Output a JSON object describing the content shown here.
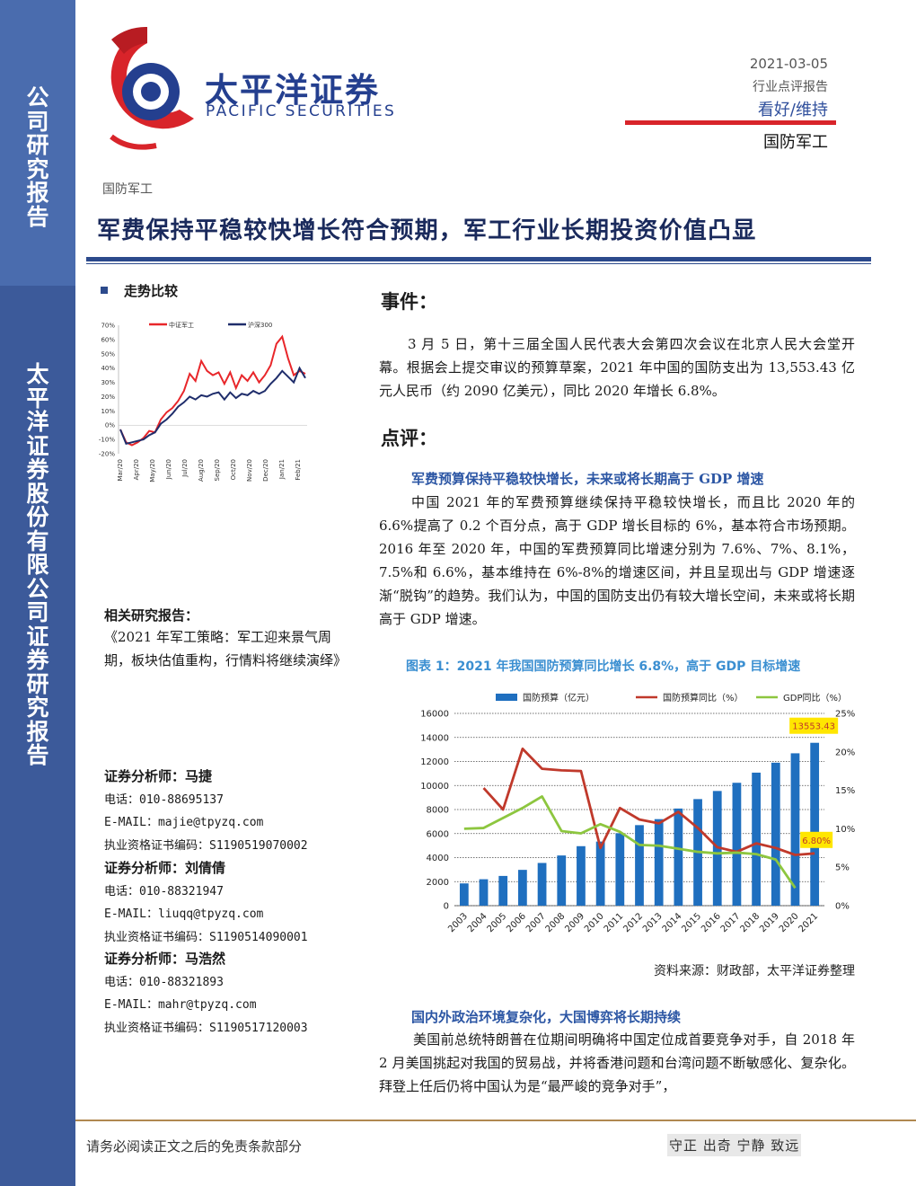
{
  "side_band": {
    "top_text": "公司研究报告",
    "bottom_text": "太平洋证券股份有限公司证券研究报告"
  },
  "header": {
    "brand_cn": "太平洋证券",
    "brand_en": "PACIFIC SECURITIES",
    "date": "2021-03-05",
    "report_type": "行业点评报告",
    "rating": "看好/维持",
    "industry": "国防军工"
  },
  "kicker": "国防军工",
  "title": "军费保持平稳较快增长符合预期，军工行业长期投资价值凸显",
  "trend": {
    "heading": "走势比较",
    "chart_data": {
      "type": "line",
      "series": [
        {
          "name": "中证军工",
          "color": "#e8262a",
          "values": [
            -3,
            -12,
            -14,
            -12,
            -9,
            -4,
            -5,
            4,
            9,
            12,
            17,
            24,
            36,
            31,
            45,
            38,
            35,
            37,
            29,
            37,
            26,
            35,
            31,
            37,
            30,
            35,
            42,
            57,
            62,
            47,
            35,
            38,
            36
          ]
        },
        {
          "name": "沪深300",
          "color": "#1f2d6b",
          "values": [
            -3,
            -13,
            -12,
            -11,
            -10,
            -7,
            -5,
            1,
            4,
            8,
            13,
            16,
            20,
            18,
            21,
            20,
            22,
            23,
            18,
            23,
            19,
            22,
            21,
            24,
            22,
            24,
            29,
            33,
            38,
            34,
            30,
            40,
            33
          ]
        }
      ],
      "y_ticks": [
        "70%",
        "60%",
        "50%",
        "40%",
        "30%",
        "20%",
        "10%",
        "0%",
        "-10%",
        "-20%"
      ],
      "ylim": [
        -20,
        70
      ],
      "x_ticks": [
        "Mar/20",
        "Apr/20",
        "May/20",
        "Jun/20",
        "Jul/20",
        "Aug/20",
        "Sep/20",
        "Oct/20",
        "Nov/20",
        "Dec/20",
        "Jan/21",
        "Feb/21"
      ],
      "legend_placement": "top"
    }
  },
  "related": {
    "heading": "相关研究报告：",
    "body": "《2021 年军工策略：军工迎来景气周期，板块估值重构，行情料将继续演绎》"
  },
  "analysts": [
    {
      "name_label": "证券分析师：马捷",
      "phone": "电话：010-88695137",
      "email": "E-MAIL：majie@tpyzq.com",
      "license": "执业资格证书编码：S1190519070002"
    },
    {
      "name_label": "证券分析师：刘倩倩",
      "phone": "电话：010-88321947",
      "email": "E-MAIL：liuqq@tpyzq.com",
      "license": "执业资格证书编码：S1190514090001"
    },
    {
      "name_label": "证券分析师：马浩然",
      "phone": "电话：010-88321893",
      "email": "E-MAIL：mahr@tpyzq.com",
      "license": "执业资格证书编码：S1190517120003"
    }
  ],
  "event": {
    "heading": "事件：",
    "body": "3 月 5 日，第十三届全国人民代表大会第四次会议在北京人民大会堂开幕。根据会上提交审议的预算草案，2021 年中国的国防支出为 13,553.43 亿元人民币（约 2090 亿美元），同比 2020 年增长 6.8%。"
  },
  "comment": {
    "heading": "点评：",
    "sub1": "军费预算保持平稳较快增长，未来或将长期高于 GDP 增速",
    "para1": "中国 2021 年的军费预算继续保持平稳较快增长，而且比 2020 年的 6.6%提高了 0.2 个百分点，高于 GDP 增长目标的 6%，基本符合市场预期。2016 年至 2020 年，中国的军费预算同比增速分别为 7.6%、7%、8.1%，7.5%和 6.6%，基本维持在 6%-8%的增速区间，并且呈现出与 GDP 增速逐渐“脱钩”的趋势。我们认为，中国的国防支出仍有较大增长空间，未来或将长期高于 GDP 增速。",
    "sub2": "国内外政治环境复杂化，大国博弈将长期持续",
    "para2": "美国前总统特朗普在位期间明确将中国定位成首要竞争对手，自 2018 年 2 月美国挑起对我国的贸易战，并将香港问题和台湾问题不断敏感化、复杂化。拜登上任后仍将中国认为是“最严峻的竞争对手”，"
  },
  "figure": {
    "title": "图表 1：2021 年我国国防预算同比增长 6.8%，高于 GDP 目标增速",
    "source": "资料来源：财政部，太平洋证券整理",
    "chart_data": {
      "type": "bar",
      "categories": [
        "2003",
        "2004",
        "2005",
        "2006",
        "2007",
        "2008",
        "2009",
        "2010",
        "2011",
        "2012",
        "2013",
        "2014",
        "2015",
        "2016",
        "2017",
        "2018",
        "2019",
        "2020",
        "2021"
      ],
      "series": [
        {
          "name": "国防预算（亿元）",
          "type": "bar",
          "color": "#1f6fbf",
          "axis": "left",
          "values": [
            1853,
            2200,
            2475,
            2980,
            3555,
            4178,
            4951,
            5335,
            6028,
            6703,
            7202,
            8083,
            8869,
            9544,
            10226,
            11070,
            11899,
            12680,
            13553.43
          ]
        },
        {
          "name": "国防预算同比（%）",
          "type": "line",
          "color": "#c0392b",
          "axis": "right",
          "values": [
            null,
            15.3,
            12.5,
            20.4,
            17.8,
            17.6,
            17.5,
            7.5,
            12.7,
            11.2,
            10.7,
            12.2,
            10.1,
            7.6,
            7.0,
            8.1,
            7.5,
            6.6,
            6.8
          ]
        },
        {
          "name": "GDP同比（%）",
          "type": "line",
          "color": "#8dc63f",
          "axis": "right",
          "values": [
            10.0,
            10.1,
            11.4,
            12.7,
            14.2,
            9.7,
            9.4,
            10.6,
            9.6,
            7.9,
            7.8,
            7.4,
            7.0,
            6.8,
            6.9,
            6.7,
            6.0,
            2.3,
            null
          ]
        }
      ],
      "left_ticks": [
        "16000",
        "14000",
        "12000",
        "10000",
        "8000",
        "6000",
        "4000",
        "2000",
        "0"
      ],
      "right_ticks": [
        "25%",
        "20%",
        "15%",
        "10%",
        "5%",
        "0%"
      ],
      "ylim_left": [
        0,
        16000
      ],
      "ylim_right": [
        0,
        25
      ],
      "annotations": [
        "13553.43",
        "6.80%"
      ],
      "legend_placement": "top"
    }
  },
  "footer": {
    "disclaimer": "请务必阅读正文之后的免责条款部分",
    "motto": "守正 出奇 宁静 致远"
  }
}
